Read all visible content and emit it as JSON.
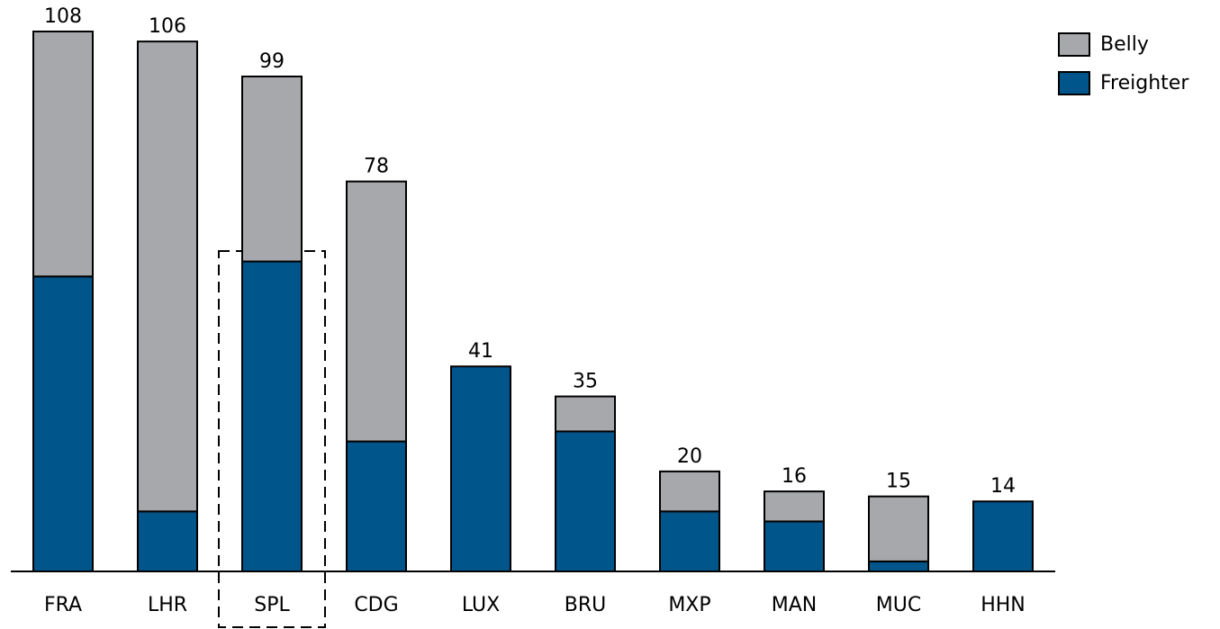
{
  "chart_data": {
    "type": "stacked-bar",
    "categories": [
      "FRA",
      "LHR",
      "SPL",
      "CDG",
      "LUX",
      "BRU",
      "MXP",
      "MAN",
      "MUC",
      "HHN"
    ],
    "series": [
      {
        "name": "Freighter",
        "color": "#00558b",
        "values": [
          59,
          12,
          62,
          26,
          41,
          28,
          12,
          10,
          2,
          14
        ]
      },
      {
        "name": "Belly",
        "color": "#a6a8ab",
        "values": [
          49,
          94,
          37,
          52,
          0,
          7,
          8,
          6,
          13,
          0
        ]
      }
    ],
    "totals": [
      108,
      106,
      99,
      78,
      41,
      35,
      20,
      16,
      15,
      14
    ],
    "ylim": [
      0,
      108
    ],
    "legend": "top-right"
  }
}
